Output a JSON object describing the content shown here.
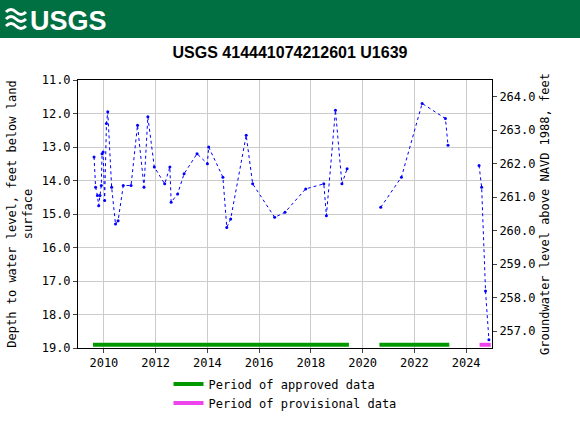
{
  "header": {
    "logo_text": "USGS"
  },
  "chart_data": {
    "type": "line",
    "title": "USGS 414441074212601 U1639",
    "ylabel": "Depth to water level, feet below land surface",
    "y2label": "Groundwater level above NAVD 1988, feet",
    "x": [
      2009.62,
      2009.68,
      2009.75,
      2009.8,
      2009.85,
      2009.9,
      2009.93,
      2009.97,
      2010.03,
      2010.1,
      2010.15,
      2010.3,
      2010.45,
      2010.55,
      2010.75,
      2011.05,
      2011.3,
      2011.55,
      2011.7,
      2011.95,
      2012.35,
      2012.55,
      2012.6,
      2012.85,
      2013.1,
      2013.6,
      2014.0,
      2014.05,
      2014.6,
      2014.75,
      2014.9,
      2015.5,
      2015.75,
      2016.6,
      2017.0,
      2017.8,
      2018.5,
      2018.6,
      2018.95,
      2019.2,
      2019.4,
      2020.0,
      2020.7,
      2021.5,
      2022.3,
      2023.2,
      2023.3,
      2024.0,
      2024.5,
      2024.6,
      2024.75,
      2024.88
    ],
    "values": [
      13.3,
      14.2,
      14.45,
      14.75,
      14.45,
      14.15,
      13.2,
      13.15,
      14.6,
      12.3,
      11.95,
      14.2,
      15.3,
      15.2,
      14.15,
      14.15,
      12.35,
      14.2,
      12.1,
      13.6,
      14.1,
      13.6,
      14.65,
      14.4,
      13.8,
      13.2,
      13.5,
      13.0,
      13.9,
      15.4,
      15.15,
      12.65,
      14.1,
      15.1,
      14.95,
      14.25,
      14.1,
      15.05,
      11.9,
      14.1,
      13.65,
      null,
      14.8,
      13.9,
      11.7,
      12.15,
      12.95,
      null,
      13.55,
      14.2,
      17.3,
      18.75
    ],
    "color": "#0000ff",
    "marker": "circle",
    "line_style": "dotted",
    "xlim": [
      2009,
      2025
    ],
    "xticks": [
      2010,
      2012,
      2014,
      2016,
      2018,
      2020,
      2022,
      2024
    ],
    "ylim": [
      19,
      11
    ],
    "yticks": [
      {
        "value": 11,
        "label": "11.0"
      },
      {
        "value": 12,
        "label": "12.0"
      },
      {
        "value": 13,
        "label": "13.0"
      },
      {
        "value": 14,
        "label": "14.0"
      },
      {
        "value": 15,
        "label": "15.0"
      },
      {
        "value": 16,
        "label": "16.0"
      },
      {
        "value": 17,
        "label": "17.0"
      },
      {
        "value": 18,
        "label": "18.0"
      },
      {
        "value": 19,
        "label": "19.0"
      }
    ],
    "y2lim": [
      256.5,
      264.5
    ],
    "y2ticks": [
      {
        "value": 257,
        "label": "257.0"
      },
      {
        "value": 258,
        "label": "258.0"
      },
      {
        "value": 259,
        "label": "259.0"
      },
      {
        "value": 260,
        "label": "260.0"
      },
      {
        "value": 261,
        "label": "261.0"
      },
      {
        "value": 262,
        "label": "262.0"
      },
      {
        "value": 263,
        "label": "263.0"
      },
      {
        "value": 264,
        "label": "264.0"
      }
    ],
    "grid": true,
    "legend": "bottom",
    "periods": [
      {
        "name": "Period of approved data",
        "color": "#009900",
        "ranges": [
          [
            2009.58,
            2019.47
          ],
          [
            2020.65,
            2023.35
          ]
        ]
      },
      {
        "name": "Period of provisional data",
        "color": "#ee44ee",
        "ranges": [
          [
            2024.52,
            2024.95
          ]
        ]
      }
    ]
  }
}
